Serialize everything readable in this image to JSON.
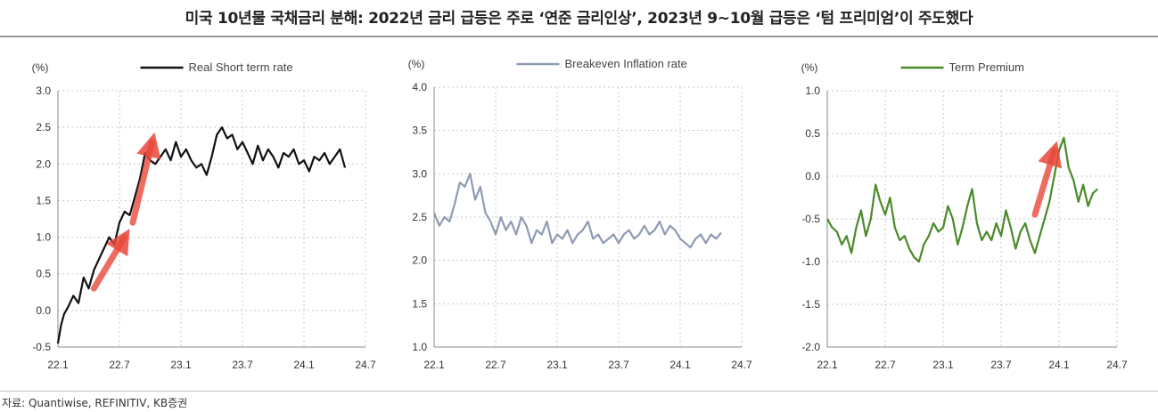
{
  "page": {
    "title": "미국 10년물 국채금리 분해: 2022년 금리 급등은 주로 ‘연준 금리인상’, 2023년 9~10월 급등은 ‘텀 프리미엄’이 주도했다",
    "source": "자료: Quantiwise, REFINITIV, KB증권"
  },
  "chart_data": [
    {
      "type": "line",
      "unit_label": "(%)",
      "xlabel": "",
      "ylabel": "",
      "ylim": [
        -0.5,
        3.0
      ],
      "yticks": [
        -0.5,
        0.0,
        0.5,
        1.0,
        1.5,
        2.0,
        2.5,
        3.0
      ],
      "ytick_labels": [
        "-0.5",
        "0.0",
        "0.5",
        "1.0",
        "1.5",
        "2.0",
        "2.5",
        "3.0"
      ],
      "xticks": [
        0,
        6,
        12,
        18,
        24,
        30
      ],
      "xtick_labels": [
        "22.1",
        "22.7",
        "23.1",
        "23.7",
        "24.1",
        "24.7"
      ],
      "x_range_months": [
        0,
        30
      ],
      "grid": true,
      "legend": "top",
      "series": [
        {
          "name": "Real Short term rate",
          "color": "#111111",
          "x": [
            0,
            0.3,
            0.6,
            1,
            1.5,
            2,
            2.5,
            3,
            3.5,
            4,
            4.5,
            5,
            5.5,
            6,
            6.5,
            7,
            7.5,
            8,
            8.5,
            9,
            9.5,
            10,
            10.5,
            11,
            11.5,
            12,
            12.5,
            13,
            13.5,
            14,
            14.5,
            15,
            15.5,
            16,
            16.5,
            17,
            17.5,
            18,
            18.5,
            19,
            19.5,
            20,
            20.5,
            21,
            21.5,
            22,
            22.5,
            23,
            23.5,
            24,
            24.5,
            25,
            25.5,
            26,
            26.5,
            27,
            27.5,
            28
          ],
          "y": [
            -0.45,
            -0.2,
            -0.05,
            0.05,
            0.2,
            0.1,
            0.45,
            0.3,
            0.55,
            0.7,
            0.85,
            1.0,
            0.9,
            1.2,
            1.35,
            1.3,
            1.55,
            1.8,
            2.15,
            2.05,
            2.0,
            2.1,
            2.2,
            2.05,
            2.3,
            2.1,
            2.2,
            2.05,
            1.95,
            2.0,
            1.85,
            2.1,
            2.4,
            2.5,
            2.35,
            2.4,
            2.2,
            2.3,
            2.15,
            2.0,
            2.25,
            2.05,
            2.2,
            2.1,
            1.95,
            2.15,
            2.1,
            2.2,
            2.0,
            2.05,
            1.9,
            2.1,
            2.05,
            2.15,
            2.0,
            2.1,
            2.2,
            1.95
          ]
        }
      ],
      "annotations": [
        {
          "type": "arrow",
          "from": [
            3.5,
            0.3
          ],
          "to": [
            6.5,
            1.0
          ],
          "color": "#e8483b"
        },
        {
          "type": "arrow",
          "from": [
            7.3,
            1.2
          ],
          "to": [
            9.2,
            2.3
          ],
          "color": "#e8483b"
        }
      ]
    },
    {
      "type": "line",
      "unit_label": "(%)",
      "xlabel": "",
      "ylabel": "",
      "ylim": [
        1.0,
        4.0
      ],
      "yticks": [
        1.0,
        1.5,
        2.0,
        2.5,
        3.0,
        3.5,
        4.0
      ],
      "ytick_labels": [
        "1.0",
        "1.5",
        "2.0",
        "2.5",
        "3.0",
        "3.5",
        "4.0"
      ],
      "xticks": [
        0,
        6,
        12,
        18,
        24,
        30
      ],
      "xtick_labels": [
        "22.1",
        "22.7",
        "23.1",
        "23.7",
        "24.1",
        "24.7"
      ],
      "x_range_months": [
        0,
        30
      ],
      "grid": true,
      "legend": "top",
      "series": [
        {
          "name": "Breakeven Inflation rate",
          "color": "#8e9bb3",
          "x": [
            0,
            0.5,
            1,
            1.5,
            2,
            2.5,
            3,
            3.5,
            4,
            4.5,
            5,
            5.5,
            6,
            6.5,
            7,
            7.5,
            8,
            8.5,
            9,
            9.5,
            10,
            10.5,
            11,
            11.5,
            12,
            12.5,
            13,
            13.5,
            14,
            14.5,
            15,
            15.5,
            16,
            16.5,
            17,
            17.5,
            18,
            18.5,
            19,
            19.5,
            20,
            20.5,
            21,
            21.5,
            22,
            22.5,
            23,
            23.5,
            24,
            24.5,
            25,
            25.5,
            26,
            26.5,
            27,
            27.5,
            28
          ],
          "y": [
            2.55,
            2.4,
            2.5,
            2.45,
            2.65,
            2.9,
            2.85,
            3.0,
            2.7,
            2.85,
            2.55,
            2.45,
            2.3,
            2.5,
            2.35,
            2.45,
            2.3,
            2.5,
            2.4,
            2.2,
            2.35,
            2.3,
            2.45,
            2.2,
            2.3,
            2.25,
            2.35,
            2.2,
            2.3,
            2.35,
            2.45,
            2.25,
            2.3,
            2.2,
            2.25,
            2.3,
            2.2,
            2.3,
            2.35,
            2.25,
            2.3,
            2.4,
            2.3,
            2.35,
            2.45,
            2.3,
            2.4,
            2.35,
            2.25,
            2.2,
            2.15,
            2.25,
            2.3,
            2.2,
            2.3,
            2.25,
            2.32
          ]
        }
      ]
    },
    {
      "type": "line",
      "unit_label": "(%)",
      "xlabel": "",
      "ylabel": "",
      "ylim": [
        -2.0,
        1.0
      ],
      "yticks": [
        -2.0,
        -1.5,
        -1.0,
        -0.5,
        0.0,
        0.5,
        1.0
      ],
      "ytick_labels": [
        "-2.0",
        "-1.5",
        "-1.0",
        "-0.5",
        "0.0",
        "0.5",
        "1.0"
      ],
      "xticks": [
        0,
        6,
        12,
        18,
        24,
        30
      ],
      "xtick_labels": [
        "22.1",
        "22.7",
        "23.1",
        "23.7",
        "24.1",
        "24.7"
      ],
      "x_range_months": [
        0,
        30
      ],
      "grid": true,
      "legend": "top",
      "series": [
        {
          "name": "Term Premium",
          "color": "#4a8a2a",
          "x": [
            0,
            0.5,
            1,
            1.5,
            2,
            2.5,
            3,
            3.5,
            4,
            4.5,
            5,
            5.5,
            6,
            6.5,
            7,
            7.5,
            8,
            8.5,
            9,
            9.5,
            10,
            10.5,
            11,
            11.5,
            12,
            12.5,
            13,
            13.5,
            14,
            14.5,
            15,
            15.5,
            16,
            16.5,
            17,
            17.5,
            18,
            18.5,
            19,
            19.5,
            20,
            20.5,
            21,
            21.5,
            22,
            22.5,
            23,
            23.5,
            24,
            24.5,
            25,
            25.5,
            26,
            26.5,
            27,
            27.5,
            28
          ],
          "y": [
            -0.5,
            -0.6,
            -0.65,
            -0.8,
            -0.7,
            -0.9,
            -0.6,
            -0.4,
            -0.7,
            -0.5,
            -0.1,
            -0.3,
            -0.45,
            -0.25,
            -0.6,
            -0.75,
            -0.7,
            -0.85,
            -0.95,
            -1.0,
            -0.8,
            -0.7,
            -0.55,
            -0.65,
            -0.6,
            -0.35,
            -0.5,
            -0.8,
            -0.6,
            -0.35,
            -0.15,
            -0.55,
            -0.75,
            -0.65,
            -0.75,
            -0.55,
            -0.7,
            -0.4,
            -0.6,
            -0.85,
            -0.65,
            -0.55,
            -0.75,
            -0.9,
            -0.7,
            -0.5,
            -0.3,
            0.0,
            0.3,
            0.45,
            0.1,
            -0.05,
            -0.3,
            -0.1,
            -0.35,
            -0.2,
            -0.15
          ]
        }
      ],
      "annotations": [
        {
          "type": "arrow",
          "from": [
            21.5,
            -0.45
          ],
          "to": [
            23.5,
            0.3
          ],
          "color": "#e8483b"
        }
      ]
    }
  ]
}
